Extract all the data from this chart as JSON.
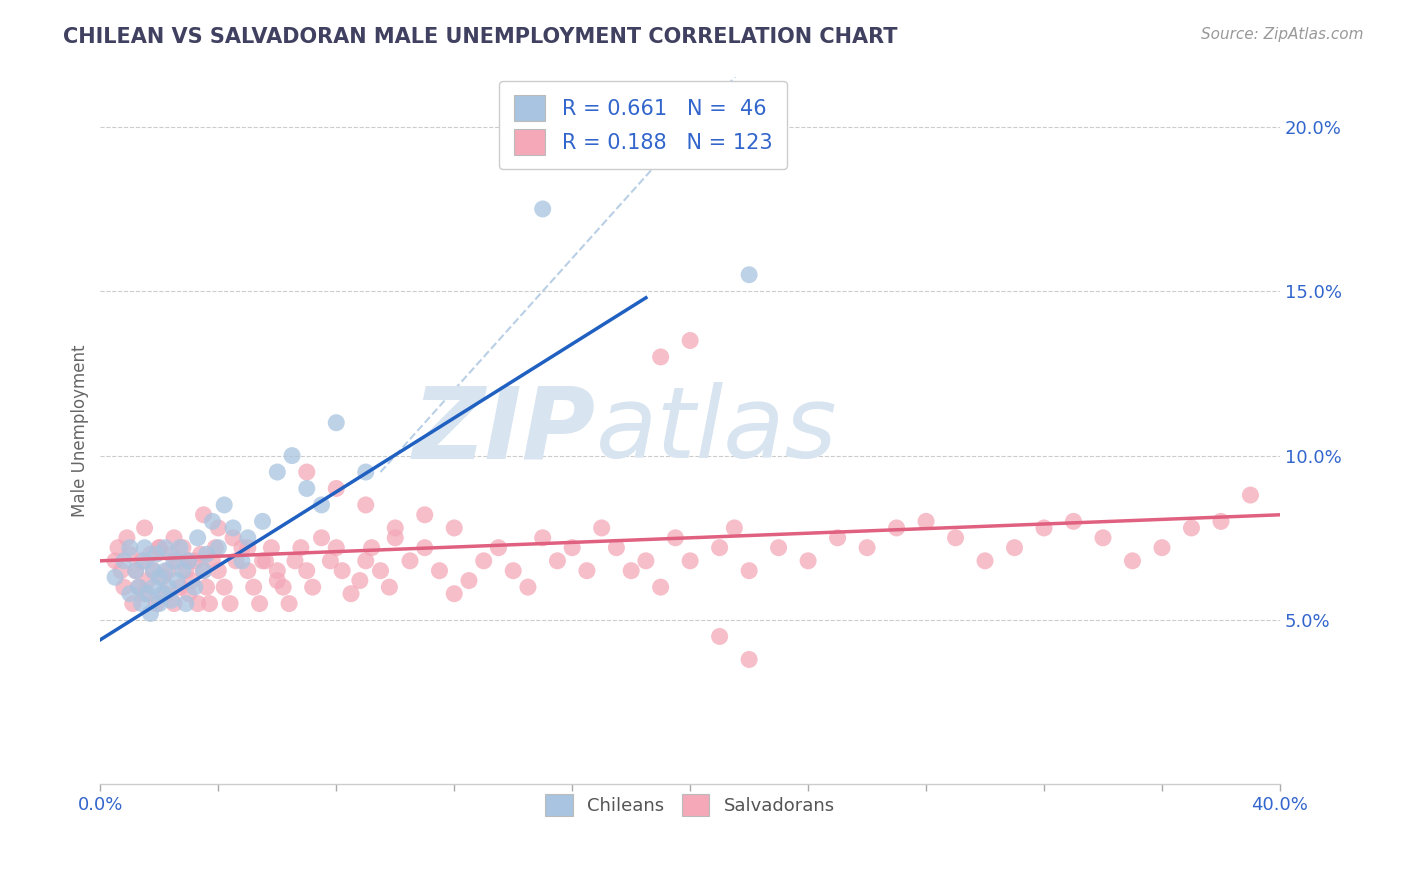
{
  "title": "CHILEAN VS SALVADORAN MALE UNEMPLOYMENT CORRELATION CHART",
  "source_text": "Source: ZipAtlas.com",
  "ylabel": "Male Unemployment",
  "xlim": [
    0.0,
    0.4
  ],
  "ylim": [
    0.0,
    0.215
  ],
  "yticks": [
    0.05,
    0.1,
    0.15,
    0.2
  ],
  "ytick_labels": [
    "5.0%",
    "10.0%",
    "15.0%",
    "20.0%"
  ],
  "chilean_R": 0.661,
  "chilean_N": 46,
  "salvadoran_R": 0.188,
  "salvadoran_N": 123,
  "chilean_color": "#a8c4e0",
  "salvadoran_color": "#f4a8b8",
  "chilean_line_color": "#2060c0",
  "salvadoran_line_color": "#e06080",
  "diagonal_color": "#a8c4e0",
  "title_color": "#404060",
  "stat_color": "#3366cc",
  "background_color": "#ffffff",
  "grid_color": "#cccccc",
  "watermark_color": "#d8e4f0",
  "chilean_line": [
    0.0,
    0.044,
    0.185,
    0.148
  ],
  "salvadoran_line": [
    0.0,
    0.068,
    0.4,
    0.082
  ],
  "diagonal_line": [
    0.095,
    0.095,
    0.4,
    0.4
  ],
  "chilean_scatter_x": [
    0.005,
    0.008,
    0.01,
    0.01,
    0.012,
    0.013,
    0.014,
    0.015,
    0.015,
    0.016,
    0.017,
    0.018,
    0.018,
    0.019,
    0.02,
    0.02,
    0.021,
    0.022,
    0.022,
    0.023,
    0.024,
    0.025,
    0.026,
    0.027,
    0.028,
    0.029,
    0.03,
    0.032,
    0.033,
    0.035,
    0.036,
    0.038,
    0.04,
    0.042,
    0.045,
    0.048,
    0.05,
    0.055,
    0.06,
    0.065,
    0.07,
    0.075,
    0.08,
    0.09,
    0.15,
    0.22
  ],
  "chilean_scatter_y": [
    0.063,
    0.068,
    0.058,
    0.072,
    0.065,
    0.06,
    0.055,
    0.068,
    0.072,
    0.058,
    0.052,
    0.06,
    0.065,
    0.07,
    0.055,
    0.063,
    0.058,
    0.072,
    0.065,
    0.06,
    0.056,
    0.068,
    0.062,
    0.072,
    0.065,
    0.055,
    0.068,
    0.06,
    0.075,
    0.065,
    0.07,
    0.08,
    0.072,
    0.085,
    0.078,
    0.068,
    0.075,
    0.08,
    0.095,
    0.1,
    0.09,
    0.085,
    0.11,
    0.095,
    0.175,
    0.155
  ],
  "salvadoran_scatter_x": [
    0.005,
    0.006,
    0.007,
    0.008,
    0.009,
    0.01,
    0.011,
    0.012,
    0.013,
    0.014,
    0.015,
    0.016,
    0.017,
    0.018,
    0.019,
    0.02,
    0.021,
    0.022,
    0.023,
    0.024,
    0.025,
    0.026,
    0.027,
    0.028,
    0.029,
    0.03,
    0.031,
    0.032,
    0.033,
    0.034,
    0.035,
    0.036,
    0.037,
    0.038,
    0.039,
    0.04,
    0.042,
    0.044,
    0.046,
    0.048,
    0.05,
    0.052,
    0.054,
    0.056,
    0.058,
    0.06,
    0.062,
    0.064,
    0.066,
    0.068,
    0.07,
    0.072,
    0.075,
    0.078,
    0.08,
    0.082,
    0.085,
    0.088,
    0.09,
    0.092,
    0.095,
    0.098,
    0.1,
    0.105,
    0.11,
    0.115,
    0.12,
    0.125,
    0.13,
    0.135,
    0.14,
    0.145,
    0.15,
    0.155,
    0.16,
    0.165,
    0.17,
    0.175,
    0.18,
    0.185,
    0.19,
    0.195,
    0.2,
    0.21,
    0.215,
    0.22,
    0.23,
    0.24,
    0.25,
    0.26,
    0.27,
    0.28,
    0.29,
    0.3,
    0.31,
    0.32,
    0.33,
    0.34,
    0.35,
    0.36,
    0.37,
    0.38,
    0.39,
    0.015,
    0.02,
    0.025,
    0.03,
    0.035,
    0.04,
    0.045,
    0.05,
    0.055,
    0.06,
    0.07,
    0.08,
    0.09,
    0.1,
    0.11,
    0.12,
    0.19,
    0.2,
    0.21,
    0.22
  ],
  "salvadoran_scatter_y": [
    0.068,
    0.072,
    0.065,
    0.06,
    0.075,
    0.07,
    0.055,
    0.065,
    0.06,
    0.068,
    0.058,
    0.062,
    0.07,
    0.065,
    0.055,
    0.072,
    0.063,
    0.058,
    0.065,
    0.07,
    0.055,
    0.068,
    0.06,
    0.072,
    0.065,
    0.058,
    0.062,
    0.068,
    0.055,
    0.07,
    0.065,
    0.06,
    0.055,
    0.068,
    0.072,
    0.065,
    0.06,
    0.055,
    0.068,
    0.072,
    0.065,
    0.06,
    0.055,
    0.068,
    0.072,
    0.065,
    0.06,
    0.055,
    0.068,
    0.072,
    0.065,
    0.06,
    0.075,
    0.068,
    0.072,
    0.065,
    0.058,
    0.062,
    0.068,
    0.072,
    0.065,
    0.06,
    0.075,
    0.068,
    0.072,
    0.065,
    0.058,
    0.062,
    0.068,
    0.072,
    0.065,
    0.06,
    0.075,
    0.068,
    0.072,
    0.065,
    0.078,
    0.072,
    0.065,
    0.068,
    0.06,
    0.075,
    0.068,
    0.072,
    0.078,
    0.065,
    0.072,
    0.068,
    0.075,
    0.072,
    0.078,
    0.08,
    0.075,
    0.068,
    0.072,
    0.078,
    0.08,
    0.075,
    0.068,
    0.072,
    0.078,
    0.08,
    0.088,
    0.078,
    0.072,
    0.075,
    0.068,
    0.082,
    0.078,
    0.075,
    0.072,
    0.068,
    0.062,
    0.095,
    0.09,
    0.085,
    0.078,
    0.082,
    0.078,
    0.13,
    0.135,
    0.045,
    0.038
  ]
}
